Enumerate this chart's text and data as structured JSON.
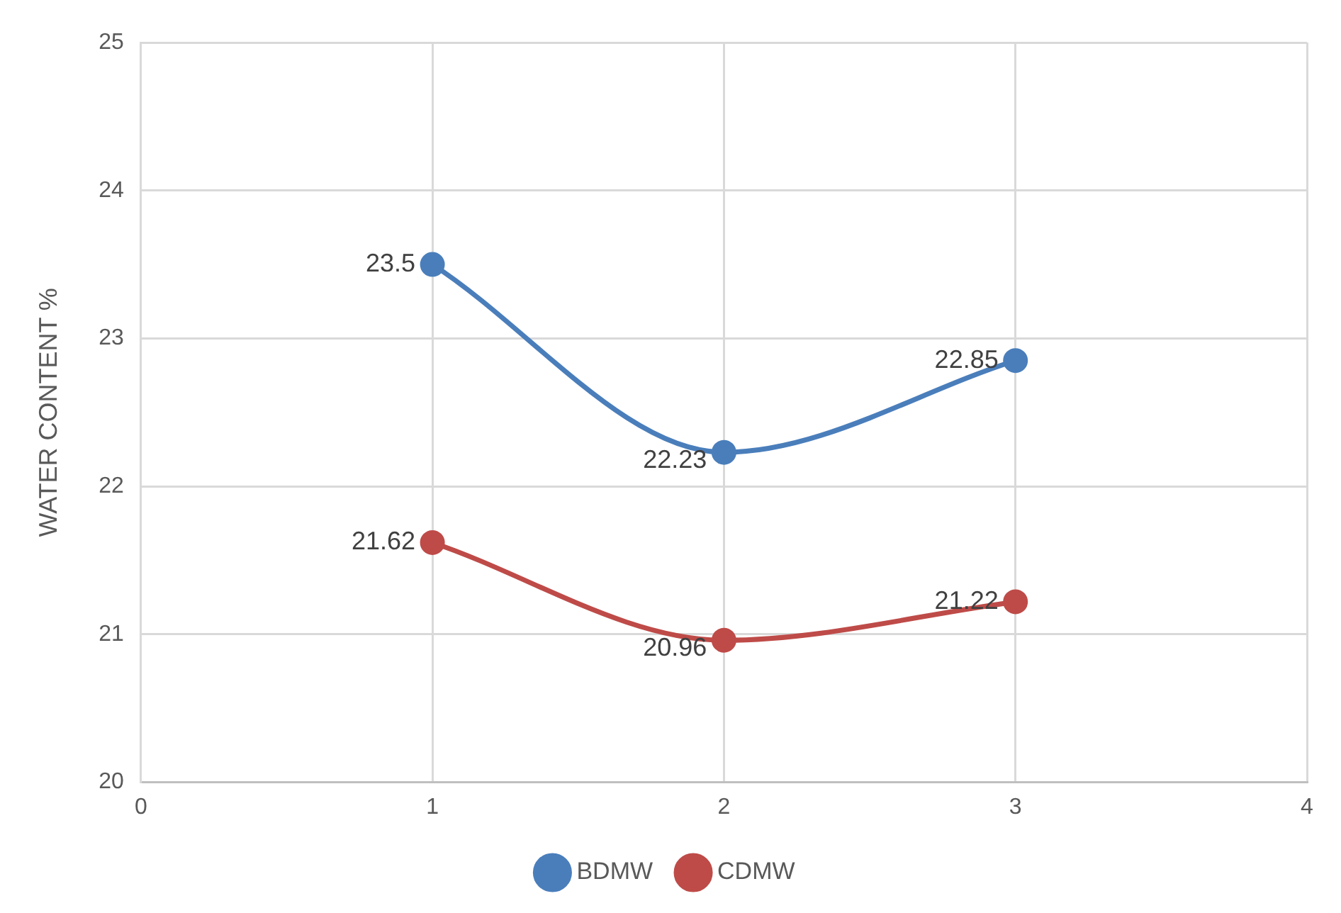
{
  "chart_data": {
    "type": "line",
    "ylabel": "WATER CONTENT %",
    "xlim": [
      0,
      4
    ],
    "xticks": [
      0,
      1,
      2,
      3,
      4
    ],
    "ylim": [
      20,
      25
    ],
    "yticks": [
      20,
      21,
      22,
      23,
      24,
      25
    ],
    "grid": true,
    "legend": "bottom",
    "marker": "circle",
    "line_style": "solid",
    "data_labels": true,
    "series": [
      {
        "name": "BDMW",
        "color": "#4a7ebb",
        "x": [
          1,
          2,
          3
        ],
        "values": [
          23.5,
          22.23,
          22.85
        ]
      },
      {
        "name": "CDMW",
        "color": "#be4b48",
        "x": [
          1,
          2,
          3
        ],
        "values": [
          21.62,
          20.96,
          21.22
        ]
      }
    ]
  }
}
